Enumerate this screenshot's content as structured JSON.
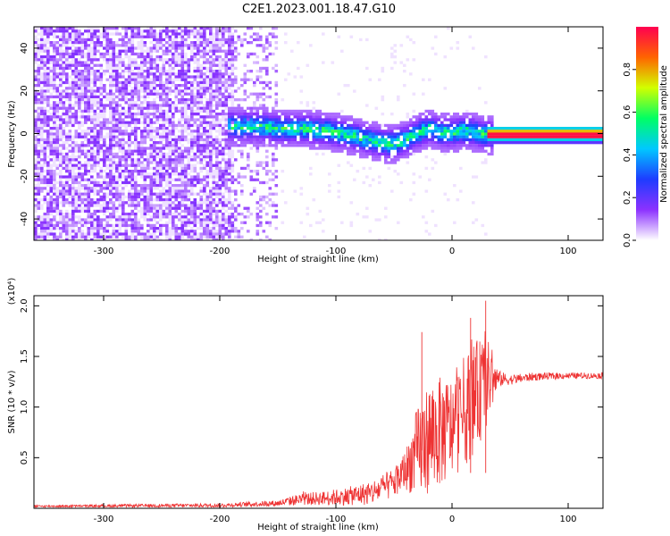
{
  "figure_title": "C2E1.2023.001.18.47.G10",
  "chart_data": [
    {
      "type": "heatmap",
      "title": "",
      "xlabel": "Height of straight line (km)",
      "ylabel": "Frequency (Hz)",
      "xlim": [
        -360,
        130
      ],
      "ylim": [
        -50,
        50
      ],
      "x_ticks": [
        -300,
        -200,
        -100,
        0,
        100
      ],
      "x_tick_labels": [
        "-300",
        "-200",
        "-100",
        "0",
        "100"
      ],
      "y_ticks": [
        -40,
        -20,
        0,
        20,
        40
      ],
      "y_tick_labels": [
        "-40",
        "-20",
        "0",
        "20",
        "40"
      ],
      "colorbar": {
        "label": "Normalized spectral amplitude",
        "range": [
          0,
          1
        ],
        "ticks": [
          0.0,
          0.2,
          0.4,
          0.6,
          0.8
        ],
        "tick_labels": [
          "0.0",
          "0.2",
          "0.4",
          "0.6",
          "0.8"
        ],
        "colors": [
          "#ffffff",
          "#8c32ff",
          "#1e3cff",
          "#00c8ff",
          "#00ff64",
          "#d2ff00",
          "#ff6400",
          "#ff0050"
        ]
      },
      "noise_region_x": [
        -360,
        -150
      ],
      "signal_center_freq": [
        [
          -190,
          4
        ],
        [
          -170,
          4
        ],
        [
          -150,
          3
        ],
        [
          -130,
          3
        ],
        [
          -110,
          2
        ],
        [
          -90,
          0
        ],
        [
          -75,
          -2
        ],
        [
          -60,
          -4
        ],
        [
          -50,
          -4
        ],
        [
          -40,
          -2
        ],
        [
          -30,
          1
        ],
        [
          -20,
          3
        ],
        [
          -10,
          1
        ],
        [
          0,
          1
        ],
        [
          10,
          2
        ],
        [
          20,
          1
        ],
        [
          30,
          0
        ],
        [
          130,
          0
        ]
      ],
      "grid": false
    },
    {
      "type": "line",
      "title": "",
      "xlabel": "Height of straight line (km)",
      "ylabel": "SNR (10 * v/v)",
      "y_multiplier_label": "(x10⁴)",
      "xlim": [
        -360,
        130
      ],
      "ylim": [
        0,
        2.1
      ],
      "x_ticks": [
        -300,
        -200,
        -100,
        0,
        100
      ],
      "x_tick_labels": [
        "-300",
        "-200",
        "-100",
        "0",
        "100"
      ],
      "y_ticks": [
        0.5,
        1.0,
        1.5,
        2.0
      ],
      "y_tick_labels": [
        "0.5",
        "1.0",
        "1.5",
        "2.0"
      ],
      "series_color": "#ee3333",
      "envelope": {
        "x": [
          -360,
          -200,
          -150,
          -130,
          -110,
          -90,
          -70,
          -50,
          -40,
          -30,
          -20,
          -10,
          0,
          10,
          20,
          30,
          40,
          50,
          70,
          100,
          130
        ],
        "mean": [
          0.02,
          0.03,
          0.05,
          0.09,
          0.1,
          0.12,
          0.15,
          0.25,
          0.38,
          0.55,
          0.7,
          0.75,
          0.8,
          0.95,
          1.1,
          1.25,
          1.28,
          1.27,
          1.3,
          1.31,
          1.31
        ],
        "amplitude": [
          0.01,
          0.02,
          0.03,
          0.06,
          0.07,
          0.09,
          0.12,
          0.15,
          0.2,
          0.45,
          0.55,
          0.55,
          0.5,
          0.55,
          0.55,
          0.45,
          0.08,
          0.05,
          0.04,
          0.03,
          0.03
        ]
      },
      "peaks": [
        {
          "x": -26,
          "y": 1.74
        },
        {
          "x": 16,
          "y": 1.88
        },
        {
          "x": 29,
          "y": 2.05
        }
      ],
      "grid": false
    }
  ]
}
